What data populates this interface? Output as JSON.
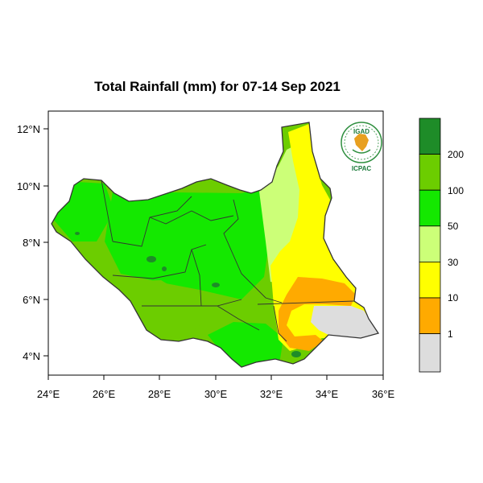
{
  "title": "Total Rainfall (mm) for 07-14 Sep 2021",
  "axes": {
    "x_ticks": [
      "24°E",
      "26°E",
      "28°E",
      "30°E",
      "32°E",
      "34°E",
      "36°E"
    ],
    "y_ticks": [
      "12°N",
      "10°N",
      "8°N",
      "6°N",
      "4°N"
    ]
  },
  "logo": {
    "top_text": "IGAD",
    "bottom_text": "ICPAC"
  },
  "legend": {
    "labels": [
      "200",
      "100",
      "50",
      "30",
      "10",
      "1"
    ],
    "colors": [
      "#1e8c28",
      "#6ccd00",
      "#14e800",
      "#ccff78",
      "#ffff00",
      "#ffaa00",
      "#dddddd"
    ]
  },
  "colors": {
    "frame": "#000000",
    "light_green": "#6ccd00",
    "bright_green": "#14e800",
    "dark_green": "#1e8c28",
    "pale_green": "#ccff78",
    "yellow": "#ffff00",
    "orange": "#ffaa00",
    "grey": "#dddddd"
  }
}
